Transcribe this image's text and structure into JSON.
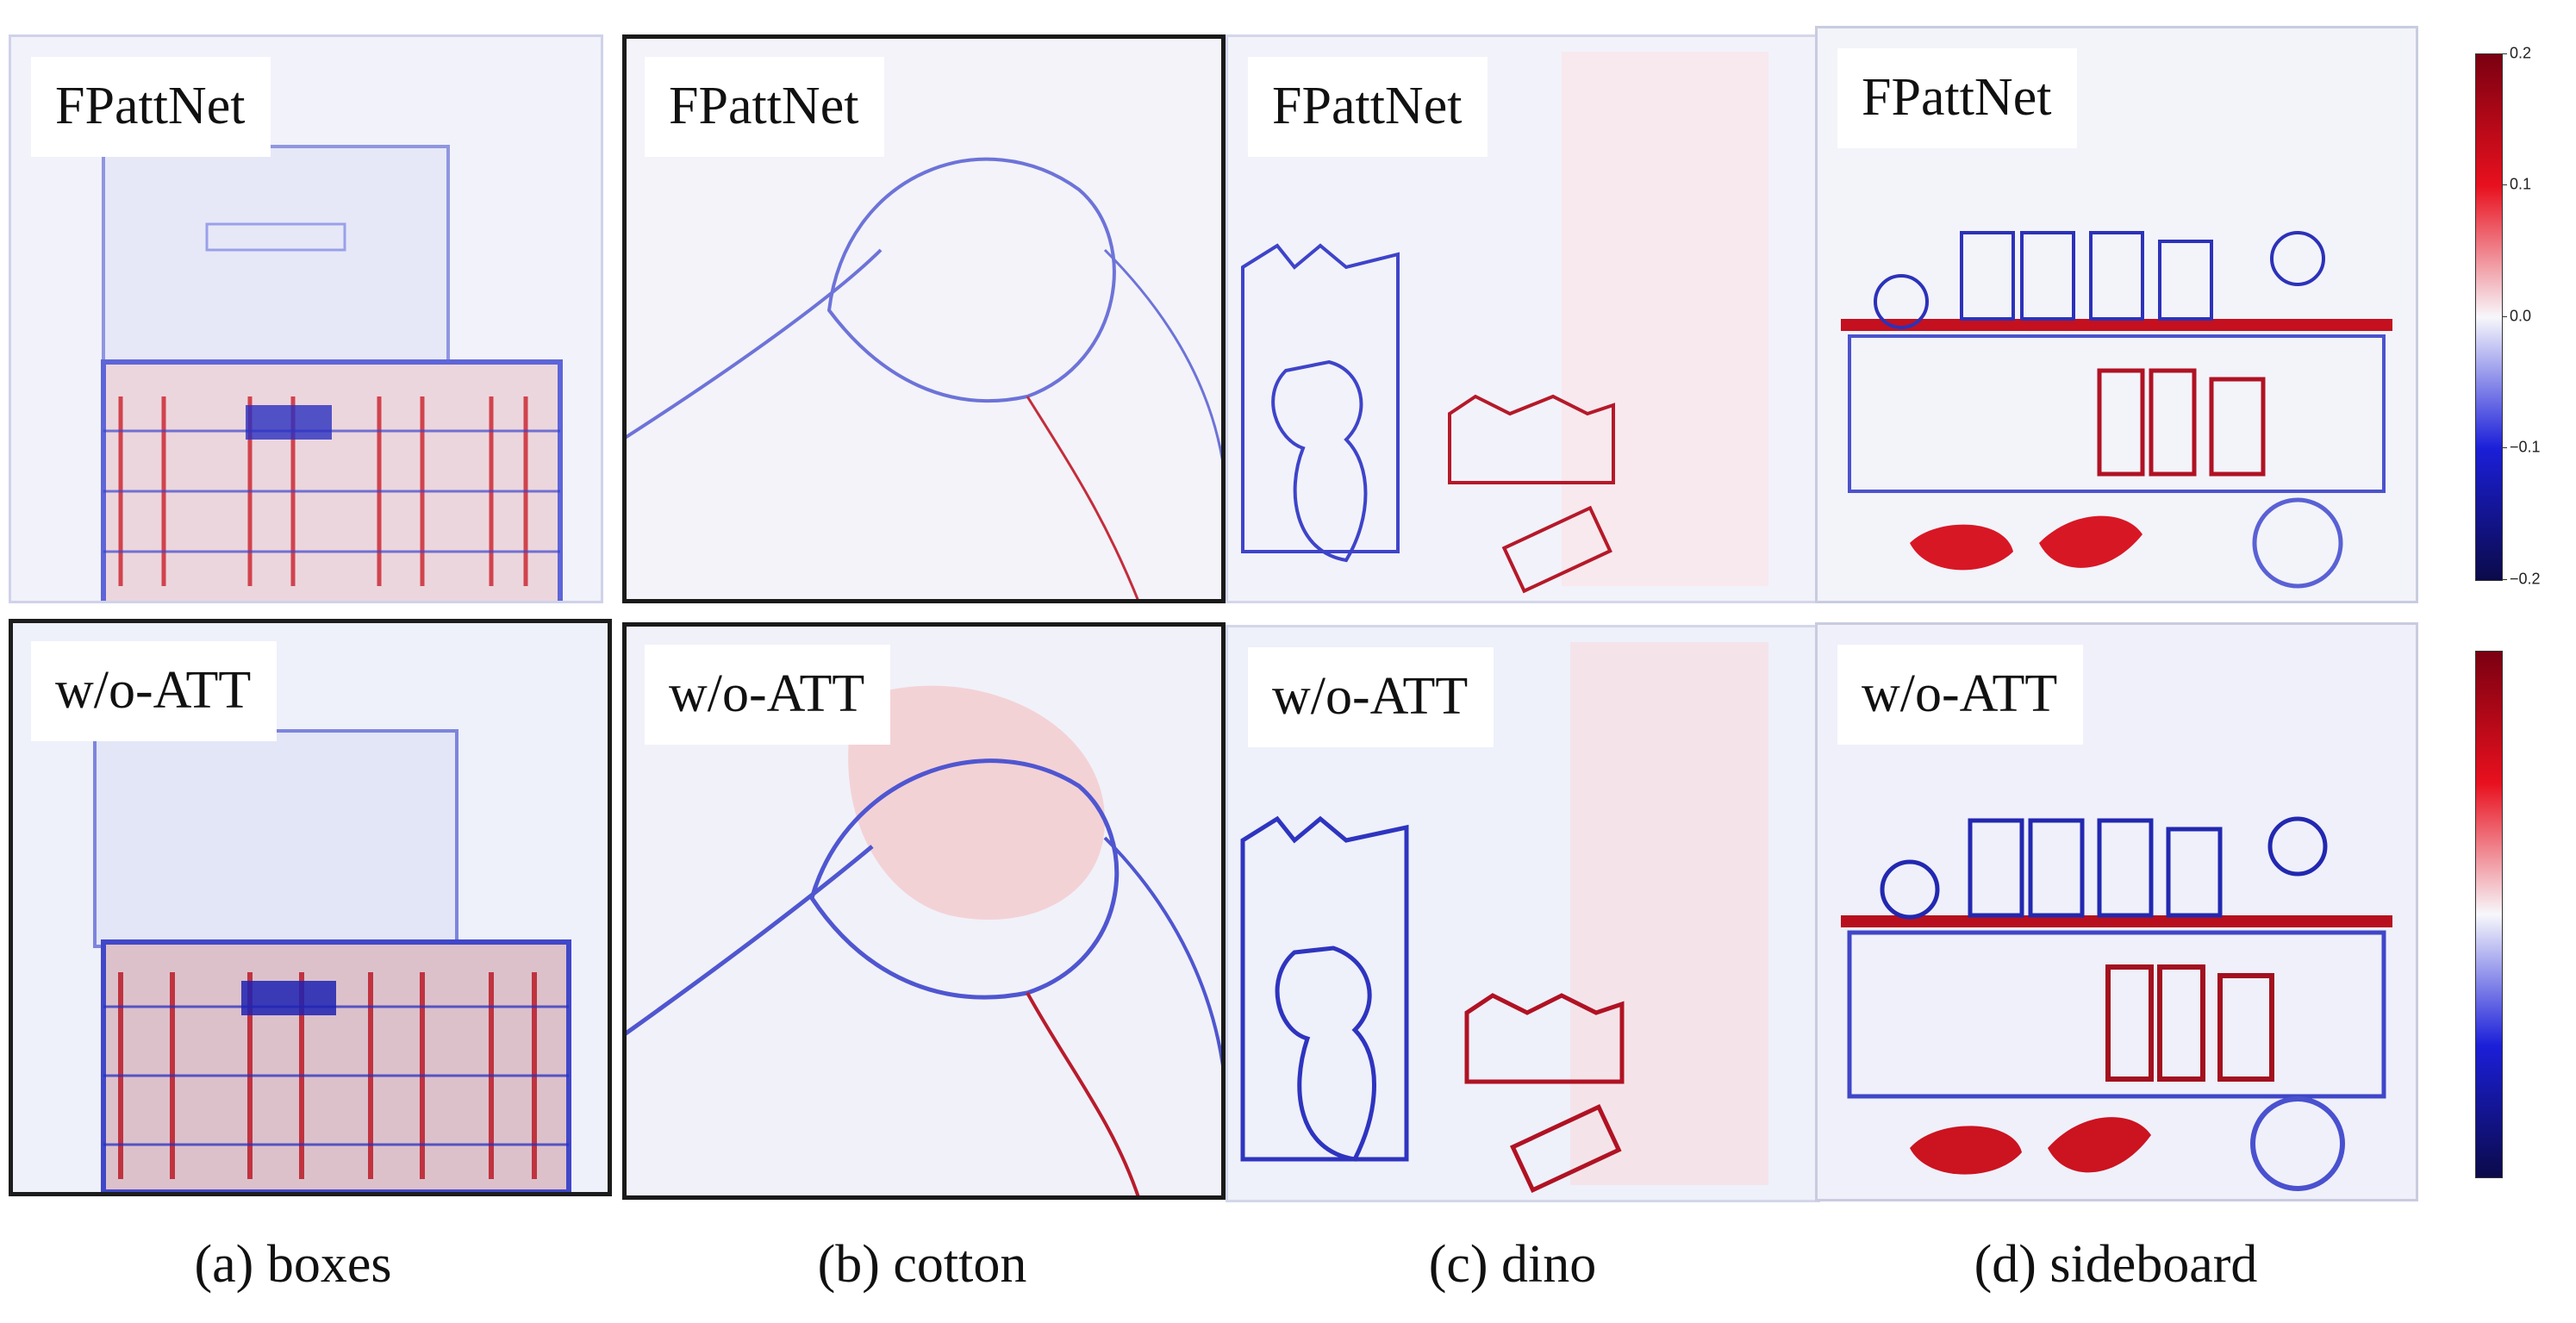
{
  "rows": {
    "top_label": "FPattNet",
    "bottom_label": "w/o-ATT"
  },
  "columns": [
    {
      "caption": "(a) boxes",
      "scene": "boxes"
    },
    {
      "caption": "(b) cotton",
      "scene": "cotton"
    },
    {
      "caption": "(c) dino",
      "scene": "dino"
    },
    {
      "caption": "(d) sideboard",
      "scene": "sideboard"
    }
  ],
  "colorbar": {
    "ticks": [
      "0.2",
      "0.1",
      "0.0",
      "−0.1",
      "−0.2"
    ],
    "colors": {
      "max": "#7a0011",
      "high": "#e8101e",
      "mid": "#f7f7fb",
      "low": "#1b1fd8",
      "min": "#0b0a4a"
    }
  }
}
